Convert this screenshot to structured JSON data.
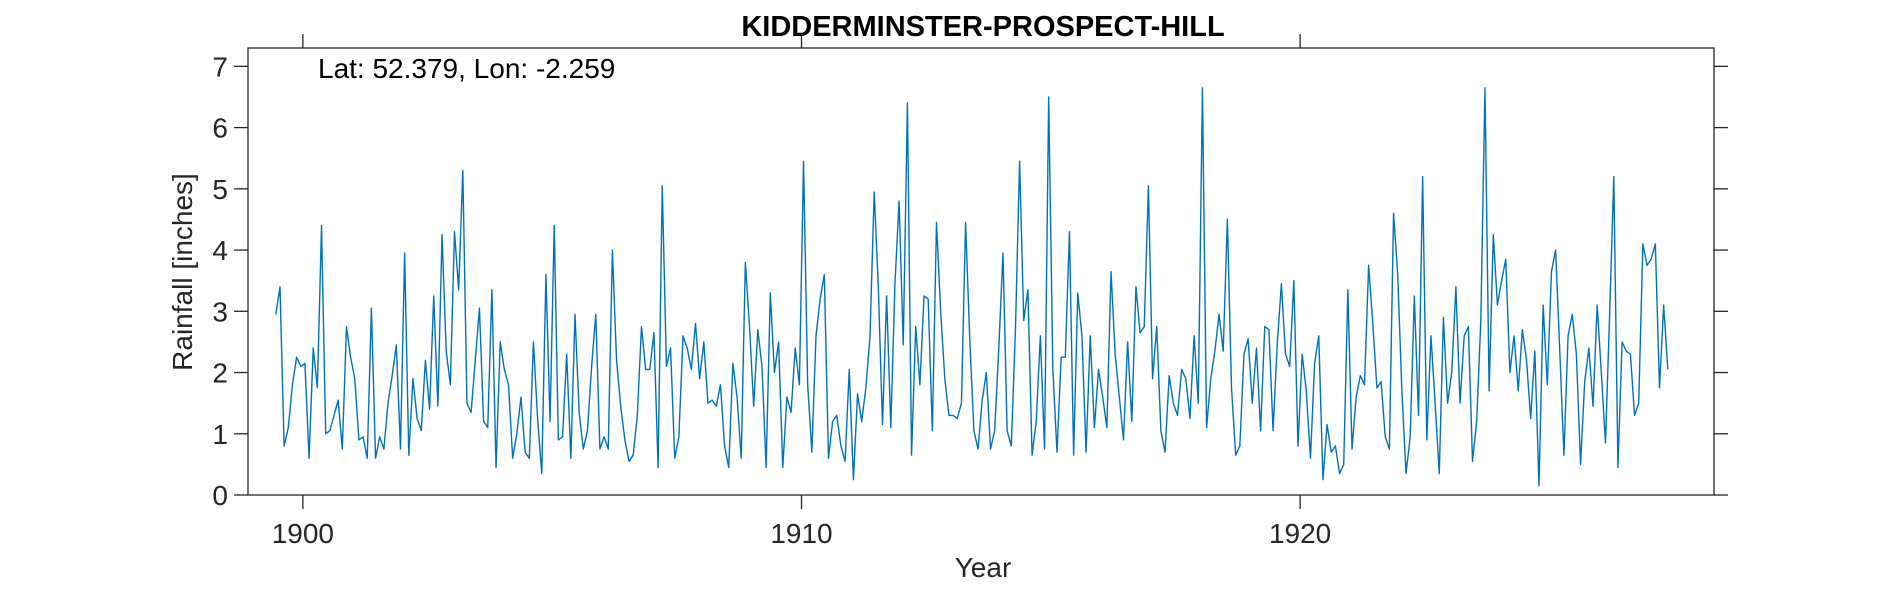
{
  "chart_data": {
    "type": "line",
    "title": "KIDDERMINSTER-PROSPECT-HILL",
    "annotation": "Lat: 52.379, Lon: -2.259",
    "xlabel": "Year",
    "ylabel": "Rainfall [inches]",
    "xlim": [
      1898.9,
      1928.3
    ],
    "ylim": [
      0,
      7.3
    ],
    "x_ticks": [
      1900,
      1910,
      1920
    ],
    "x_tick_labels": [
      "1900",
      "1910",
      "1920"
    ],
    "y_ticks": [
      0,
      1,
      2,
      3,
      4,
      5,
      6,
      7
    ],
    "y_tick_labels": [
      "0",
      "1",
      "2",
      "3",
      "4",
      "5",
      "6",
      "7"
    ],
    "grid": false,
    "color": "#0072bd",
    "x_start": 1899.458,
    "x_step": 0.08333,
    "series": [
      {
        "values": [
          2.95,
          3.4,
          0.8,
          1.1,
          1.8,
          2.25,
          2.1,
          2.15,
          0.6,
          2.4,
          1.75,
          4.4,
          1.0,
          1.05,
          1.3,
          1.55,
          0.75,
          2.75,
          2.25,
          1.9,
          0.9,
          0.95,
          0.6,
          3.05,
          0.6,
          0.95,
          0.75,
          1.5,
          1.95,
          2.45,
          0.75,
          3.95,
          0.65,
          1.9,
          1.25,
          1.05,
          2.2,
          1.4,
          3.25,
          1.45,
          4.25,
          2.35,
          1.8,
          4.3,
          3.35,
          5.3,
          1.5,
          1.35,
          2.2,
          3.05,
          1.2,
          1.1,
          3.35,
          0.45,
          2.5,
          2.05,
          1.8,
          0.6,
          1.0,
          1.6,
          0.7,
          0.6,
          2.5,
          1.25,
          0.35,
          3.6,
          1.2,
          4.4,
          0.9,
          0.95,
          2.3,
          0.6,
          2.95,
          1.35,
          0.75,
          1.05,
          2.1,
          2.95,
          0.75,
          0.95,
          0.75,
          4.0,
          2.2,
          1.45,
          0.9,
          0.55,
          0.65,
          1.3,
          2.75,
          2.05,
          2.05,
          2.65,
          0.45,
          5.05,
          2.1,
          2.4,
          0.6,
          0.95,
          2.6,
          2.4,
          2.05,
          2.8,
          1.9,
          2.5,
          1.5,
          1.55,
          1.45,
          1.8,
          0.8,
          0.45,
          2.15,
          1.6,
          0.6,
          3.8,
          2.75,
          1.45,
          2.7,
          2.1,
          0.45,
          3.3,
          2.0,
          2.5,
          0.45,
          1.6,
          1.35,
          2.4,
          1.8,
          5.45,
          1.8,
          0.7,
          2.6,
          3.2,
          3.6,
          0.6,
          1.2,
          1.3,
          0.8,
          0.55,
          2.05,
          0.25,
          1.65,
          1.2,
          1.75,
          2.6,
          4.95,
          3.4,
          1.15,
          3.25,
          1.1,
          3.45,
          4.8,
          2.45,
          6.4,
          0.65,
          2.75,
          1.8,
          3.25,
          3.2,
          1.05,
          4.45,
          3.0,
          1.9,
          1.3,
          1.3,
          1.25,
          1.5,
          4.45,
          2.55,
          1.05,
          0.75,
          1.55,
          2.0,
          0.75,
          1.05,
          2.4,
          3.95,
          1.05,
          0.8,
          2.7,
          5.45,
          2.85,
          3.35,
          0.65,
          1.2,
          2.6,
          0.75,
          6.5,
          2.05,
          0.7,
          2.25,
          2.25,
          4.3,
          0.65,
          3.3,
          2.6,
          0.7,
          2.6,
          1.1,
          2.05,
          1.6,
          1.1,
          3.65,
          2.3,
          1.6,
          0.9,
          2.5,
          1.2,
          3.4,
          2.65,
          2.75,
          5.05,
          1.9,
          2.75,
          1.05,
          0.7,
          1.95,
          1.5,
          1.3,
          2.05,
          1.9,
          1.25,
          2.6,
          1.5,
          6.65,
          1.1,
          1.9,
          2.35,
          2.95,
          2.35,
          4.5,
          1.75,
          0.65,
          0.8,
          2.3,
          2.55,
          1.5,
          2.4,
          1.05,
          2.75,
          2.7,
          1.05,
          2.45,
          3.45,
          2.3,
          2.1,
          3.5,
          0.8,
          2.3,
          1.7,
          0.6,
          2.15,
          2.6,
          0.25,
          1.15,
          0.7,
          0.8,
          0.35,
          0.5,
          3.35,
          0.75,
          1.6,
          1.95,
          1.8,
          3.75,
          2.8,
          1.75,
          1.85,
          0.95,
          0.75,
          4.6,
          3.6,
          1.7,
          0.35,
          0.95,
          3.25,
          1.3,
          5.2,
          0.9,
          2.6,
          1.5,
          0.35,
          2.9,
          1.5,
          2.0,
          3.4,
          1.5,
          2.6,
          2.75,
          0.55,
          1.2,
          2.85,
          6.65,
          1.7,
          4.25,
          3.1,
          3.5,
          3.85,
          2.0,
          2.6,
          1.7,
          2.7,
          2.2,
          1.25,
          2.35,
          0.15,
          3.1,
          1.8,
          3.65,
          4.0,
          2.35,
          0.65,
          2.6,
          2.95,
          2.3,
          0.5,
          1.85,
          2.4,
          1.45,
          3.1,
          2.0,
          0.85,
          2.95,
          5.2,
          0.45,
          2.5,
          2.35,
          2.3,
          1.3,
          1.5,
          4.1,
          3.75,
          3.85,
          4.1,
          1.75,
          3.1,
          2.05
        ]
      }
    ]
  }
}
